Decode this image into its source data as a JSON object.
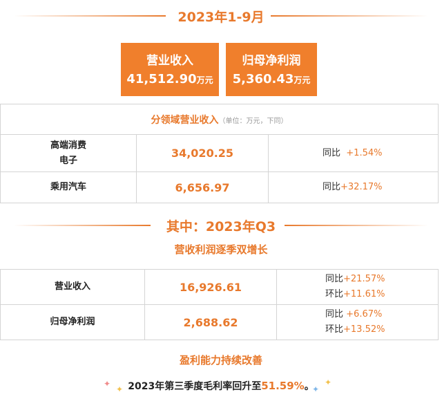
{
  "section1": {
    "title": "2023年1-9月"
  },
  "kpis": [
    {
      "label": "营业收入",
      "value": "41,512.90",
      "unit": "万元"
    },
    {
      "label": "归母净利润",
      "value": "5,360.43",
      "unit": "万元"
    }
  ],
  "table1": {
    "title": "分领域营业收入",
    "unit_note": "（单位：万元，下同）",
    "rows": [
      {
        "name_line1": "高端消费",
        "name_line2": "电子",
        "value": "34,020.25",
        "yoy_label": "同比",
        "yoy": "+1.54%"
      },
      {
        "name": "乘用汽车",
        "value": "6,656.97",
        "yoy_label": "同比",
        "yoy": "+32.17%"
      }
    ]
  },
  "section2": {
    "title": "其中：2023年Q3"
  },
  "subtitle1": "营收利润逐季双增长",
  "table2": {
    "rows": [
      {
        "name": "营业收入",
        "value": "16,926.61",
        "yoy_label": "同比",
        "yoy": "+21.57%",
        "qoq_label": "环比",
        "qoq": "+11.61%"
      },
      {
        "name": "归母净利润",
        "value": "2,688.62",
        "yoy_label": "同比",
        "yoy": "+6.67%",
        "qoq_label": "环比",
        "qoq": "+13.52%"
      }
    ]
  },
  "subtitle2": "盈利能力持续改善",
  "footer": {
    "text_before": "2023年第三季度毛利率回升至",
    "highlight": "51.59%",
    "text_after": "。"
  },
  "colors": {
    "accent": "#e8792c",
    "kpi_bg": "#f07f2c",
    "border": "#d4d4d4"
  }
}
